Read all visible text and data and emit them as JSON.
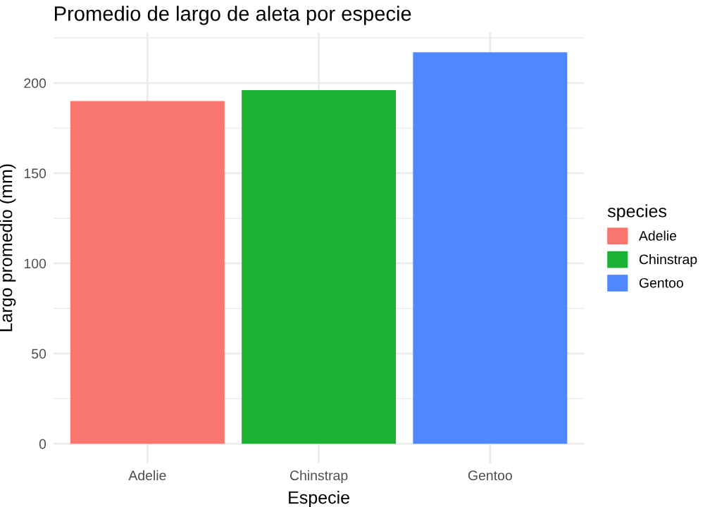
{
  "chart_data": {
    "type": "bar",
    "title": "Promedio de largo de aleta por especie",
    "xlabel": "Especie",
    "ylabel": "Largo promedio (mm)",
    "legend_title": "species",
    "categories": [
      "Adelie",
      "Chinstrap",
      "Gentoo"
    ],
    "series": [
      {
        "name": "Adelie",
        "color": "#f8766d",
        "values": [
          190,
          null,
          null
        ]
      },
      {
        "name": "Chinstrap",
        "color": "#1bb233",
        "values": [
          null,
          196,
          null
        ]
      },
      {
        "name": "Gentoo",
        "color": "#5087ff",
        "values": [
          null,
          null,
          217
        ]
      }
    ],
    "ylim": [
      -10.9,
      228
    ],
    "yticks": [
      0,
      {
        "value": 25,
        "label": null
      },
      50,
      {
        "value": 75,
        "label": null
      },
      100,
      {
        "value": 125,
        "label": null
      },
      150,
      {
        "value": 175,
        "label": null
      },
      200,
      {
        "value": 225,
        "label": null
      }
    ],
    "grid": true,
    "legend": "right"
  }
}
